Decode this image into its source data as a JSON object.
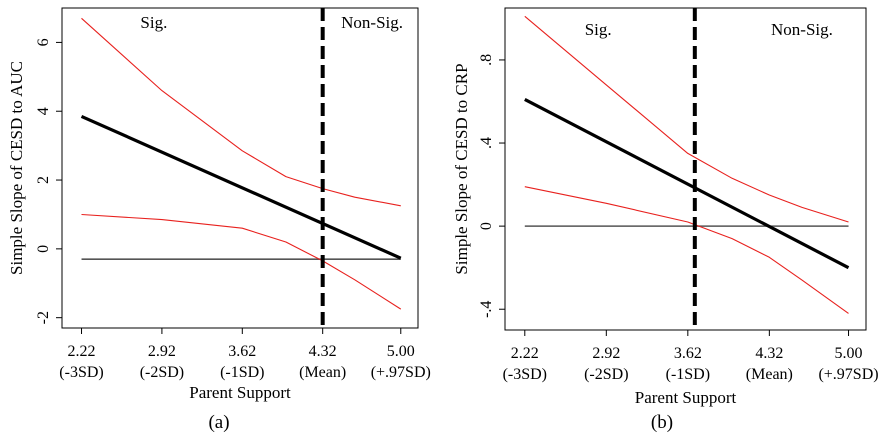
{
  "chart_data": [
    {
      "type": "line",
      "panel_label": "(a)",
      "xlabel": "Parent Support",
      "ylabel": "Simple Slope of CESD to AUC",
      "x_ticks": [
        {
          "value": 2.22,
          "line1": "2.22",
          "line2": "(-3SD)"
        },
        {
          "value": 2.92,
          "line1": "2.92",
          "line2": "(-2SD)"
        },
        {
          "value": 3.62,
          "line1": "3.62",
          "line2": "(-1SD)"
        },
        {
          "value": 4.32,
          "line1": "4.32",
          "line2": "(Mean)"
        },
        {
          "value": 5.0,
          "line1": "5.00",
          "line2": "(+.97SD)"
        }
      ],
      "y_ticks": [
        {
          "value": -2,
          "label": "-2"
        },
        {
          "value": 0,
          "label": "0"
        },
        {
          "value": 2,
          "label": "2"
        },
        {
          "value": 4,
          "label": "4"
        },
        {
          "value": 6,
          "label": "6"
        }
      ],
      "xlim": [
        2.05,
        5.15
      ],
      "ylim": [
        -2.3,
        7.0
      ],
      "region_labels": [
        {
          "text": "Sig.",
          "x": 2.85,
          "y": 6.6
        },
        {
          "text": "Non-Sig.",
          "x": 4.75,
          "y": 6.6
        }
      ],
      "threshold_x": 4.32,
      "reference_y": -0.3,
      "series": [
        {
          "role": "slope",
          "color": "#000000",
          "x": [
            2.22,
            5.0
          ],
          "y": [
            3.85,
            -0.27
          ]
        },
        {
          "role": "upper_ci",
          "color": "#e8211e",
          "x": [
            2.22,
            2.92,
            3.62,
            4.0,
            4.32,
            4.6,
            5.0
          ],
          "y": [
            6.7,
            4.6,
            2.85,
            2.1,
            1.75,
            1.5,
            1.25
          ]
        },
        {
          "role": "lower_ci",
          "color": "#e8211e",
          "x": [
            2.22,
            2.92,
            3.62,
            4.0,
            4.32,
            4.6,
            5.0
          ],
          "y": [
            1.0,
            0.85,
            0.6,
            0.2,
            -0.35,
            -0.9,
            -1.75
          ]
        }
      ]
    },
    {
      "type": "line",
      "panel_label": "(b)",
      "xlabel": "Parent Support",
      "ylabel": "Simple Slope of CESD to CRP",
      "x_ticks": [
        {
          "value": 2.22,
          "line1": "2.22",
          "line2": "(-3SD)"
        },
        {
          "value": 2.92,
          "line1": "2.92",
          "line2": "(-2SD)"
        },
        {
          "value": 3.62,
          "line1": "3.62",
          "line2": "(-1SD)"
        },
        {
          "value": 4.32,
          "line1": "4.32",
          "line2": "(Mean)"
        },
        {
          "value": 5.0,
          "line1": "5.00",
          "line2": "(+.97SD)"
        }
      ],
      "y_ticks": [
        {
          "value": -0.4,
          "label": "-.4"
        },
        {
          "value": 0,
          "label": "0"
        },
        {
          "value": 0.4,
          "label": ".4"
        },
        {
          "value": 0.8,
          "label": ".8"
        }
      ],
      "xlim": [
        2.05,
        5.15
      ],
      "ylim": [
        -0.5,
        1.05
      ],
      "region_labels": [
        {
          "text": "Sig.",
          "x": 2.85,
          "y": 0.95
        },
        {
          "text": "Non-Sig.",
          "x": 4.6,
          "y": 0.95
        }
      ],
      "threshold_x": 3.68,
      "reference_y": 0.0,
      "series": [
        {
          "role": "slope",
          "color": "#000000",
          "x": [
            2.22,
            5.0
          ],
          "y": [
            0.61,
            -0.2
          ]
        },
        {
          "role": "upper_ci",
          "color": "#e8211e",
          "x": [
            2.22,
            2.92,
            3.62,
            4.0,
            4.32,
            4.6,
            5.0
          ],
          "y": [
            1.01,
            0.68,
            0.35,
            0.23,
            0.15,
            0.09,
            0.02
          ]
        },
        {
          "role": "lower_ci",
          "color": "#e8211e",
          "x": [
            2.22,
            2.92,
            3.62,
            4.0,
            4.32,
            4.6,
            5.0
          ],
          "y": [
            0.19,
            0.11,
            0.02,
            -0.06,
            -0.15,
            -0.26,
            -0.42
          ]
        }
      ]
    }
  ]
}
